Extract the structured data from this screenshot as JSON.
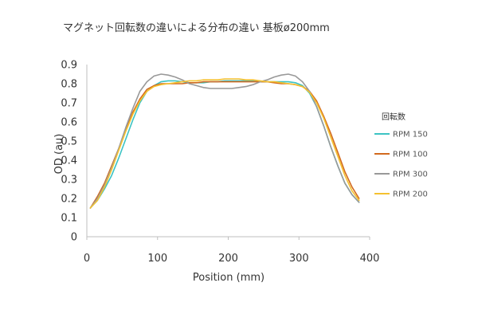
{
  "chart_data": {
    "type": "line",
    "title": "マグネット回転数の違いによる分布の違い 基板ø200mm",
    "xlabel": "Position (mm)",
    "ylabel": "OD (au)",
    "xlim": [
      0,
      400
    ],
    "ylim": [
      0,
      0.9
    ],
    "x_ticks": [
      "0",
      "100",
      "200",
      "300",
      "400"
    ],
    "y_ticks": [
      "0",
      "0.1",
      "0.2",
      "0.3",
      "0.4",
      "0.5",
      "0.6",
      "0.7",
      "0.8",
      "0.9"
    ],
    "grid": false,
    "legend": {
      "title": "回転数",
      "placement": "right"
    },
    "x": [
      5,
      15,
      25,
      35,
      45,
      55,
      65,
      75,
      85,
      95,
      105,
      115,
      125,
      135,
      145,
      155,
      165,
      175,
      185,
      195,
      205,
      215,
      225,
      235,
      245,
      255,
      265,
      275,
      285,
      295,
      305,
      315,
      325,
      335,
      345,
      355,
      365,
      375,
      385
    ],
    "series": [
      {
        "name": "RPM 150",
        "color": "#3cc3c3",
        "values": [
          0.15,
          0.19,
          0.25,
          0.32,
          0.41,
          0.51,
          0.61,
          0.7,
          0.76,
          0.79,
          0.81,
          0.815,
          0.815,
          0.81,
          0.805,
          0.805,
          0.805,
          0.81,
          0.81,
          0.815,
          0.815,
          0.815,
          0.815,
          0.815,
          0.81,
          0.81,
          0.81,
          0.81,
          0.81,
          0.805,
          0.79,
          0.75,
          0.68,
          0.58,
          0.47,
          0.37,
          0.28,
          0.22,
          0.18
        ]
      },
      {
        "name": "RPM 100",
        "color": "#d2691e",
        "values": [
          0.15,
          0.21,
          0.28,
          0.37,
          0.46,
          0.56,
          0.65,
          0.72,
          0.77,
          0.79,
          0.8,
          0.8,
          0.8,
          0.8,
          0.805,
          0.805,
          0.81,
          0.81,
          0.81,
          0.81,
          0.81,
          0.81,
          0.81,
          0.81,
          0.81,
          0.81,
          0.805,
          0.8,
          0.8,
          0.795,
          0.785,
          0.76,
          0.71,
          0.63,
          0.54,
          0.44,
          0.34,
          0.26,
          0.2
        ]
      },
      {
        "name": "RPM 300",
        "color": "#999999",
        "values": [
          0.15,
          0.2,
          0.27,
          0.36,
          0.46,
          0.57,
          0.67,
          0.76,
          0.81,
          0.84,
          0.85,
          0.845,
          0.835,
          0.82,
          0.8,
          0.79,
          0.78,
          0.775,
          0.775,
          0.775,
          0.775,
          0.78,
          0.785,
          0.795,
          0.81,
          0.82,
          0.835,
          0.845,
          0.85,
          0.84,
          0.81,
          0.76,
          0.68,
          0.58,
          0.47,
          0.37,
          0.28,
          0.22,
          0.18
        ]
      },
      {
        "name": "RPM 200",
        "color": "#f5c130",
        "values": [
          0.15,
          0.19,
          0.26,
          0.35,
          0.45,
          0.55,
          0.64,
          0.71,
          0.76,
          0.785,
          0.795,
          0.8,
          0.805,
          0.81,
          0.815,
          0.815,
          0.82,
          0.82,
          0.82,
          0.825,
          0.825,
          0.825,
          0.82,
          0.82,
          0.815,
          0.81,
          0.81,
          0.805,
          0.8,
          0.795,
          0.785,
          0.755,
          0.7,
          0.62,
          0.52,
          0.42,
          0.32,
          0.24,
          0.19
        ]
      }
    ]
  }
}
